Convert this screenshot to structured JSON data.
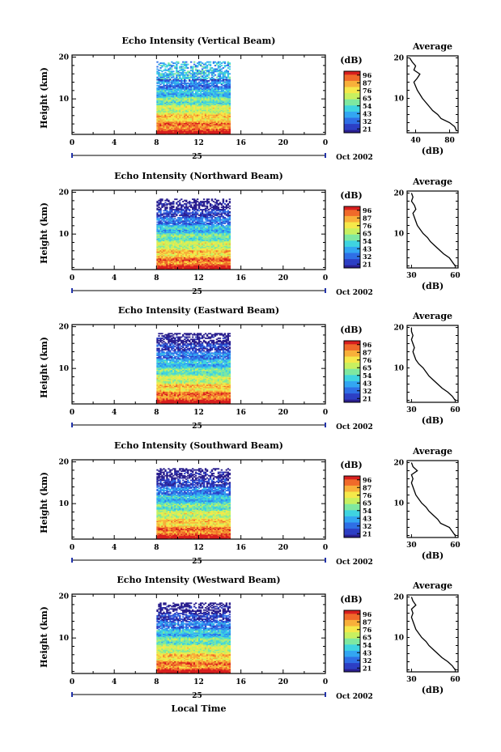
{
  "figure": {
    "x_label": "Local Time",
    "date_label": "Oct 2002",
    "day_label": "25",
    "colorbar_unit": "(dB)",
    "colorbar_ticks": [
      "96",
      "87",
      "76",
      "65",
      "54",
      "43",
      "32",
      "21"
    ],
    "colormap": [
      "#2a1f8f",
      "#2d3fc4",
      "#2f6fe6",
      "#33a6f2",
      "#3fd4e0",
      "#7fe8a0",
      "#c8f060",
      "#f5e84a",
      "#f8b03a",
      "#f06a2a",
      "#d81f1f"
    ]
  },
  "chart_data": [
    {
      "type": "heatmap",
      "title": "Echo Intensity (Vertical Beam)",
      "xlabel": "Local Time",
      "ylabel": "Height (km)",
      "x_ticks": [
        "0",
        "4",
        "8",
        "12",
        "16",
        "20",
        "0"
      ],
      "y_ticks": [
        "20",
        "10"
      ],
      "xlim": [
        0,
        24
      ],
      "ylim": [
        1.5,
        20.5
      ],
      "data_x_range": [
        8,
        15
      ],
      "data_y_range": [
        1.5,
        19
      ],
      "z_range_db": [
        21,
        96
      ],
      "avg_profile": {
        "title": "Average",
        "xlabel": "(dB)",
        "x_ticks": [
          "40",
          "80"
        ],
        "xlim": [
          30,
          90
        ],
        "height_km": [
          2,
          3,
          4,
          5,
          6,
          7,
          8,
          9,
          10,
          11,
          12,
          13,
          14,
          15,
          16,
          17,
          18,
          19,
          20
        ],
        "db": [
          88,
          86,
          80,
          70,
          66,
          60,
          56,
          52,
          48,
          45,
          42,
          40,
          38,
          42,
          45,
          38,
          40,
          36,
          33
        ]
      }
    },
    {
      "type": "heatmap",
      "title": "Echo Intensity (Northward Beam)",
      "xlabel": "Local Time",
      "ylabel": "Height (km)",
      "x_ticks": [
        "0",
        "4",
        "8",
        "12",
        "16",
        "20",
        "0"
      ],
      "y_ticks": [
        "20",
        "10"
      ],
      "xlim": [
        0,
        24
      ],
      "ylim": [
        1.5,
        20.5
      ],
      "data_x_range": [
        8,
        15
      ],
      "data_y_range": [
        1.5,
        18.5
      ],
      "z_range_db": [
        21,
        96
      ],
      "avg_profile": {
        "title": "Average",
        "xlabel": "(dB)",
        "x_ticks": [
          "30",
          "60"
        ],
        "xlim": [
          27,
          62
        ],
        "height_km": [
          2,
          3,
          4,
          5,
          6,
          7,
          8,
          9,
          10,
          11,
          12,
          13,
          14,
          15,
          16,
          17,
          18,
          19,
          20
        ],
        "db": [
          60,
          58,
          56,
          52,
          49,
          46,
          43,
          41,
          38,
          36,
          34,
          33,
          32,
          31,
          33,
          32,
          30,
          31,
          30
        ]
      }
    },
    {
      "type": "heatmap",
      "title": "Echo Intensity (Eastward Beam)",
      "xlabel": "Local Time",
      "ylabel": "Height (km)",
      "x_ticks": [
        "0",
        "4",
        "8",
        "12",
        "16",
        "20",
        "0"
      ],
      "y_ticks": [
        "20",
        "10"
      ],
      "xlim": [
        0,
        24
      ],
      "ylim": [
        1.5,
        20.5
      ],
      "data_x_range": [
        8,
        15
      ],
      "data_y_range": [
        1.5,
        18.5
      ],
      "z_range_db": [
        21,
        96
      ],
      "avg_profile": {
        "title": "Average",
        "xlabel": "(dB)",
        "x_ticks": [
          "30",
          "60"
        ],
        "xlim": [
          27,
          62
        ],
        "height_km": [
          2,
          3,
          4,
          5,
          6,
          7,
          8,
          9,
          10,
          11,
          12,
          13,
          14,
          15,
          16,
          17,
          18,
          19,
          20
        ],
        "db": [
          60,
          58,
          55,
          51,
          48,
          45,
          42,
          40,
          38,
          35,
          33,
          32,
          31,
          32,
          31,
          30,
          31,
          30,
          30
        ]
      }
    },
    {
      "type": "heatmap",
      "title": "Echo Intensity (Southward Beam)",
      "xlabel": "Local Time",
      "ylabel": "Height (km)",
      "x_ticks": [
        "0",
        "4",
        "8",
        "12",
        "16",
        "20",
        "0"
      ],
      "y_ticks": [
        "20",
        "10"
      ],
      "xlim": [
        0,
        24
      ],
      "ylim": [
        1.5,
        20.5
      ],
      "data_x_range": [
        8,
        15
      ],
      "data_y_range": [
        1.5,
        18.5
      ],
      "z_range_db": [
        21,
        96
      ],
      "avg_profile": {
        "title": "Average",
        "xlabel": "(dB)",
        "x_ticks": [
          "30",
          "60"
        ],
        "xlim": [
          27,
          62
        ],
        "height_km": [
          2,
          3,
          4,
          5,
          6,
          7,
          8,
          9,
          10,
          11,
          12,
          13,
          14,
          15,
          16,
          17,
          18,
          19,
          20
        ],
        "db": [
          60,
          58,
          56,
          50,
          48,
          45,
          42,
          40,
          37,
          35,
          33,
          32,
          31,
          30,
          31,
          30,
          34,
          31,
          30
        ]
      }
    },
    {
      "type": "heatmap",
      "title": "Echo Intensity (Westward Beam)",
      "xlabel": "Local Time",
      "ylabel": "Height (km)",
      "x_ticks": [
        "0",
        "4",
        "8",
        "12",
        "16",
        "20",
        "0"
      ],
      "y_ticks": [
        "20",
        "10"
      ],
      "xlim": [
        0,
        24
      ],
      "ylim": [
        1.5,
        20.5
      ],
      "data_x_range": [
        8,
        15
      ],
      "data_y_range": [
        1.5,
        18.5
      ],
      "z_range_db": [
        21,
        96
      ],
      "avg_profile": {
        "title": "Average",
        "xlabel": "(dB)",
        "x_ticks": [
          "30",
          "60"
        ],
        "xlim": [
          27,
          62
        ],
        "height_km": [
          2,
          3,
          4,
          5,
          6,
          7,
          8,
          9,
          10,
          11,
          12,
          13,
          14,
          15,
          16,
          17,
          18,
          19,
          20
        ],
        "db": [
          60,
          58,
          55,
          51,
          48,
          45,
          42,
          40,
          37,
          35,
          33,
          32,
          31,
          30,
          31,
          30,
          33,
          31,
          30
        ]
      }
    }
  ]
}
